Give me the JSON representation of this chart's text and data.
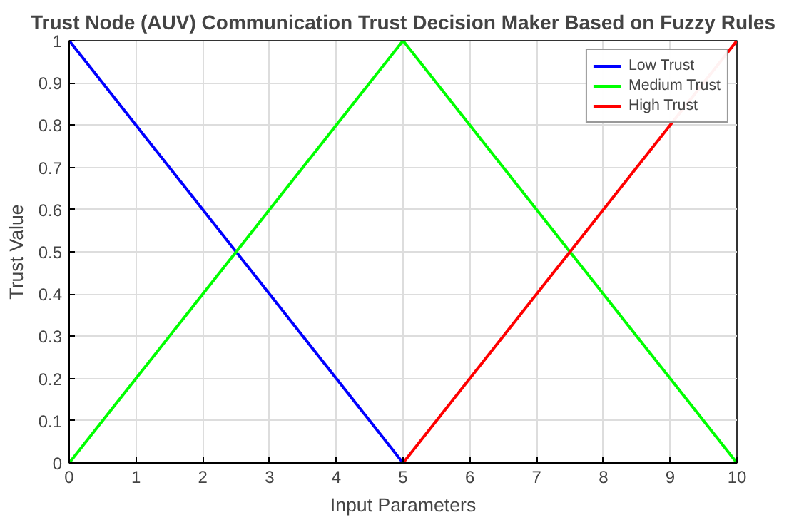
{
  "chart_data": {
    "type": "line",
    "title": "Trust Node (AUV) Communication Trust Decision Maker Based on Fuzzy Rules",
    "xlabel": "Input Parameters",
    "ylabel": "Trust Value",
    "x": [
      0,
      5,
      10
    ],
    "series": [
      {
        "name": "Low Trust",
        "color": "#0000ff",
        "values": [
          1,
          0,
          0
        ]
      },
      {
        "name": "Medium Trust",
        "color": "#00ff00",
        "values": [
          0,
          1,
          0
        ]
      },
      {
        "name": "High Trust",
        "color": "#ff0000",
        "values": [
          0,
          0,
          1
        ]
      }
    ],
    "xlim": [
      0,
      10
    ],
    "ylim": [
      0,
      1
    ],
    "xticks": [
      0,
      1,
      2,
      3,
      4,
      5,
      6,
      7,
      8,
      9,
      10
    ],
    "yticks": [
      0,
      0.1,
      0.2,
      0.3,
      0.4,
      0.5,
      0.6,
      0.7,
      0.8,
      0.9,
      1
    ],
    "grid": true,
    "legend": "top right"
  }
}
